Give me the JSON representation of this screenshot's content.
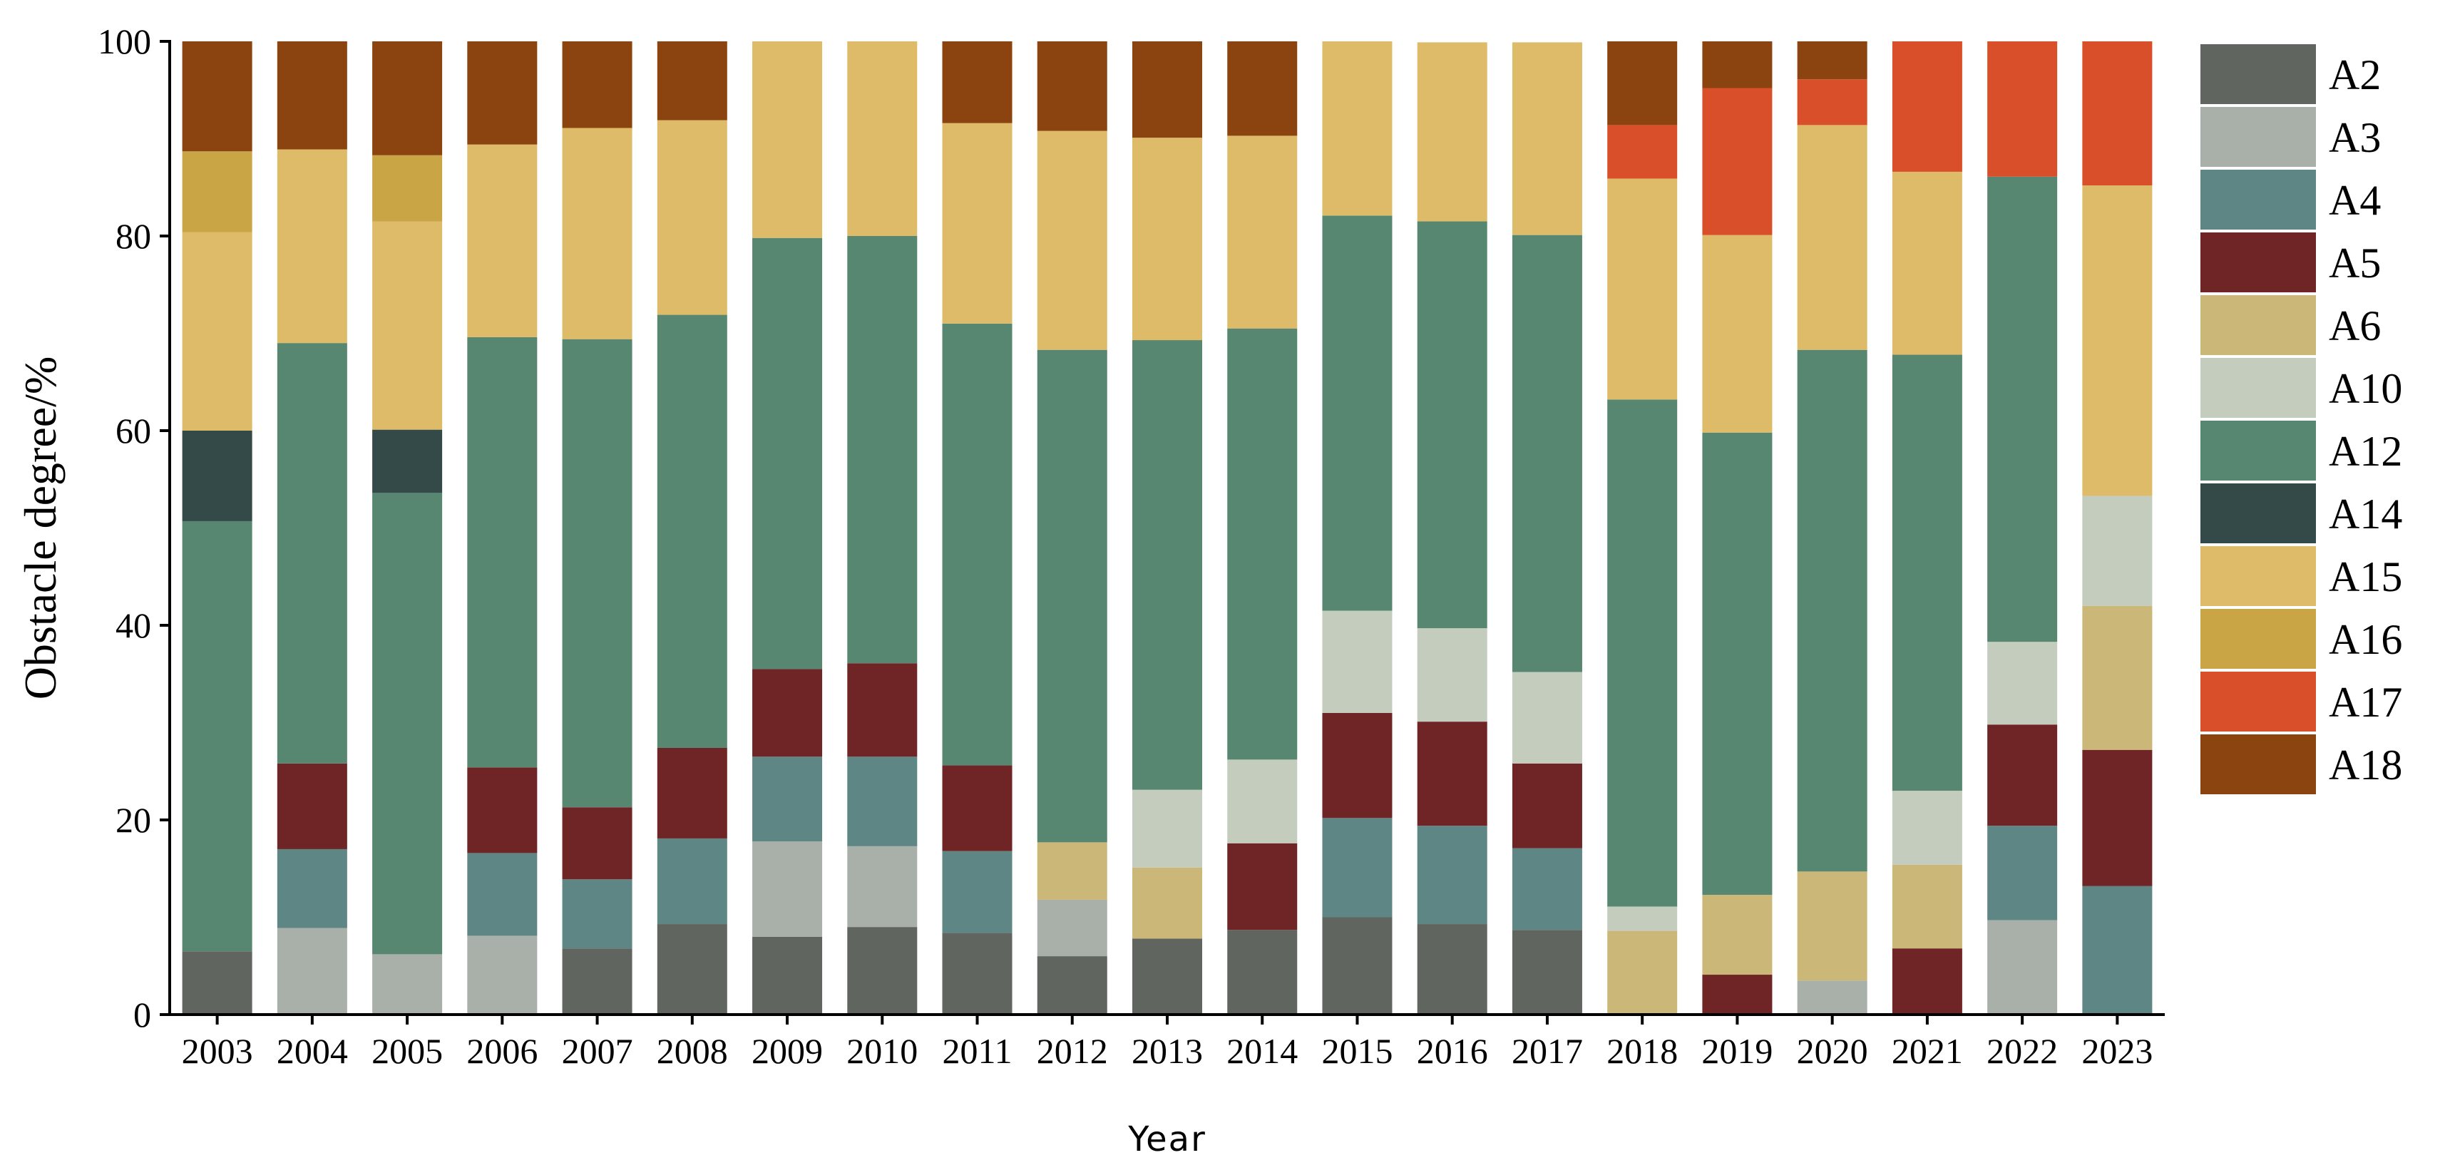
{
  "chart_data": {
    "type": "bar",
    "stacked": true,
    "title": "",
    "xlabel": "Year",
    "ylabel": "Obstacle degree/%",
    "ylim": [
      0,
      100
    ],
    "yticks": [
      0,
      20,
      40,
      60,
      80,
      100
    ],
    "grid": false,
    "legend_position": "right",
    "categories": [
      "2003",
      "2004",
      "2005",
      "2006",
      "2007",
      "2008",
      "2009",
      "2010",
      "2011",
      "2012",
      "2013",
      "2014",
      "2015",
      "2016",
      "2017",
      "2018",
      "2019",
      "2020",
      "2021",
      "2022",
      "2023"
    ],
    "series": [
      {
        "name": "A2",
        "color": "#606560",
        "values": [
          6.5,
          0,
          0,
          0,
          6.8,
          9.3,
          8.0,
          9.0,
          8.4,
          6.0,
          7.8,
          8.7,
          10.0,
          9.3,
          8.7,
          0,
          0,
          0,
          0,
          0,
          0
        ]
      },
      {
        "name": "A3",
        "color": "#a8b0a9",
        "values": [
          0,
          8.9,
          6.2,
          8.1,
          0,
          0,
          9.8,
          8.3,
          0,
          5.8,
          0,
          0,
          0,
          0,
          0,
          0,
          0,
          3.5,
          0,
          9.7,
          0
        ]
      },
      {
        "name": "A4",
        "color": "#5e8685",
        "values": [
          0,
          8.1,
          0,
          8.5,
          7.1,
          8.8,
          8.7,
          9.2,
          8.4,
          0,
          0,
          0,
          10.2,
          10.1,
          8.4,
          0,
          0,
          0,
          0,
          9.7,
          13.2
        ]
      },
      {
        "name": "A5",
        "color": "#6f2525",
        "values": [
          0,
          8.8,
          0,
          8.8,
          7.4,
          9.3,
          9.0,
          9.6,
          8.8,
          0,
          0,
          8.9,
          10.8,
          10.7,
          8.7,
          0,
          4.1,
          0,
          6.8,
          10.4,
          14.0
        ]
      },
      {
        "name": "A6",
        "color": "#cbb878",
        "values": [
          0,
          0,
          0,
          0,
          0,
          0,
          0,
          0,
          0,
          5.9,
          7.3,
          0,
          0,
          0,
          0,
          8.6,
          8.2,
          11.2,
          8.6,
          0,
          14.8
        ]
      },
      {
        "name": "A10",
        "color": "#c4ccbd",
        "values": [
          0,
          0,
          0,
          0,
          0,
          0,
          0,
          0,
          0,
          0,
          8.0,
          8.6,
          10.5,
          9.6,
          9.4,
          2.5,
          0,
          0,
          7.6,
          8.5,
          11.3
        ]
      },
      {
        "name": "A12",
        "color": "#578771",
        "values": [
          44.2,
          43.2,
          47.4,
          44.2,
          48.1,
          44.5,
          44.3,
          43.9,
          45.4,
          50.6,
          46.2,
          44.3,
          40.6,
          41.8,
          44.9,
          52.1,
          47.5,
          53.6,
          44.8,
          47.8,
          0
        ]
      },
      {
        "name": "A14",
        "color": "#334a48",
        "values": [
          9.3,
          0,
          6.5,
          0,
          0,
          0,
          0,
          0,
          0,
          0,
          0,
          0,
          0,
          0,
          0,
          0,
          0,
          0,
          0,
          0,
          0
        ]
      },
      {
        "name": "A15",
        "color": "#debb69",
        "values": [
          20.4,
          19.9,
          21.4,
          19.8,
          21.7,
          20.0,
          20.2,
          20.0,
          20.6,
          22.5,
          20.8,
          19.8,
          18.0,
          18.4,
          19.8,
          22.7,
          20.3,
          23.1,
          18.8,
          0,
          31.9
        ]
      },
      {
        "name": "A16",
        "color": "#caa545",
        "values": [
          8.3,
          0,
          6.8,
          0,
          0,
          0,
          0,
          0,
          0,
          0,
          0,
          0,
          0,
          0,
          0,
          0,
          0,
          0,
          0,
          0,
          0
        ]
      },
      {
        "name": "A17",
        "color": "#d94f2a",
        "values": [
          0,
          0,
          0,
          0,
          0,
          0,
          0,
          0,
          0,
          0,
          0,
          0,
          0,
          0,
          0,
          5.5,
          15.1,
          4.7,
          13.4,
          13.9,
          14.8
        ]
      },
      {
        "name": "A18",
        "color": "#8b4310",
        "values": [
          11.3,
          11.1,
          11.7,
          10.6,
          8.9,
          8.1,
          0,
          0,
          8.4,
          9.2,
          9.9,
          9.7,
          0,
          0,
          0,
          8.6,
          4.8,
          3.9,
          0,
          0,
          0
        ]
      }
    ]
  }
}
